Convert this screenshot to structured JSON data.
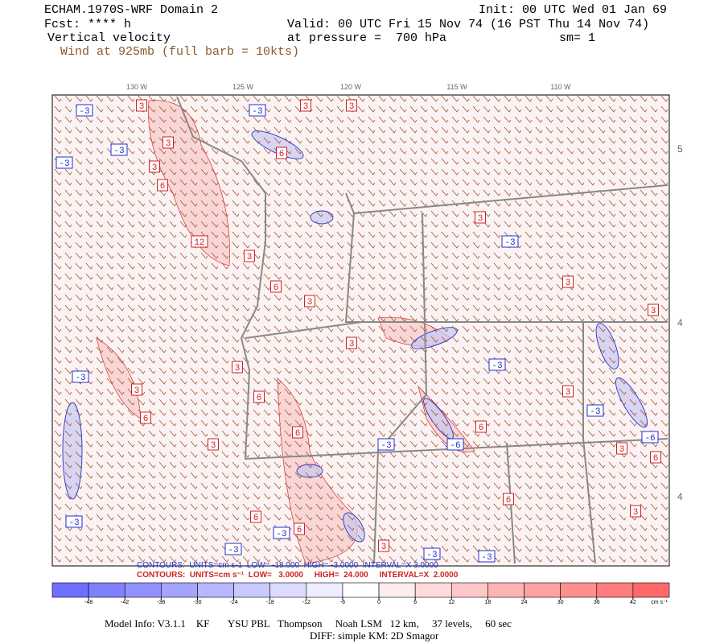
{
  "header": {
    "title": "ECHAM.1970S-WRF Domain 2",
    "init": "Init: 00 UTC Wed 01 Jan 69",
    "forecast": "Fcst: **** h",
    "valid": "Valid: 00 UTC Fri 15 Nov 74 (16 PST Thu 14 Nov 74)",
    "field": "Vertical velocity",
    "pressure": "at pressure =  700 hPa",
    "smoothing": "sm= 1",
    "wind": "Wind at 925mb (full barb = 10kts)"
  },
  "map": {
    "longitude_labels": [
      "130 W",
      "125 W",
      "120 W",
      "115 W",
      "110 W"
    ],
    "latitude_labels": [
      "5",
      "4",
      "4"
    ],
    "contour_labels": [
      "3",
      "-3",
      "3",
      "3",
      "-3",
      "-3",
      "3",
      "-3",
      "3",
      "6",
      "6",
      "3",
      "-3",
      "12",
      "3",
      "6",
      "3",
      "3",
      "3",
      "-3",
      "3",
      "6",
      "3",
      "6",
      "3",
      "-3",
      "3",
      "-3",
      "6",
      "-6",
      "-3",
      "3",
      "6",
      "-3",
      "-3",
      "6",
      "6",
      "3",
      "-3",
      "-3",
      "-3",
      "6",
      "3",
      "6",
      "-6",
      "3"
    ]
  },
  "contour_info": {
    "negative": "CONTOURS:  UNITS=cm s-1  LOW= -18.000  HIGH= -3.0000  INTERVAL=X 3.0000",
    "positive": "CONTOURS:  UNITS=cm s⁻¹  LOW=   3.0000     HIGH=  24.000     INTERVAL=X  2.0000"
  },
  "colorbar": {
    "ticks": [
      -48,
      -42,
      -36,
      -30,
      -24,
      -18,
      -12,
      -6,
      0,
      6,
      12,
      18,
      24,
      30,
      36,
      42
    ],
    "unit": "cm s⁻¹"
  },
  "footer": {
    "model_info": "Model Info: V3.1.1    KF       YSU PBL   Thompson     Noah LSM   12 km,     37 levels,     60 sec",
    "diff": "DIFF: simple KM: 2D Smagor"
  }
}
